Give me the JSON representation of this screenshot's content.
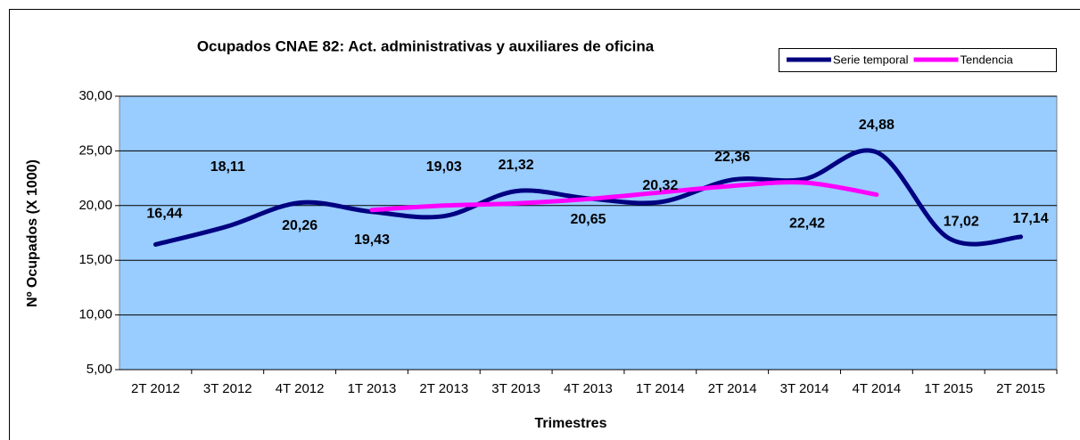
{
  "chart_data": {
    "type": "line",
    "title": "Ocupados CNAE 82: Act. administrativas y auxiliares de oficina",
    "x_label": "Trimestres",
    "y_label": "Nº Ocupados (X 1000)",
    "categories": [
      "2T 2012",
      "3T 2012",
      "4T 2012",
      "1T 2013",
      "2T 2013",
      "3T 2013",
      "4T 2013",
      "1T 2014",
      "2T 2014",
      "3T 2014",
      "4T 2014",
      "1T 2015",
      "2T 2015"
    ],
    "series": [
      {
        "name": "Serie temporal",
        "color": "#000080",
        "values": [
          16.44,
          18.11,
          20.26,
          19.43,
          19.03,
          21.32,
          20.65,
          20.32,
          22.36,
          22.42,
          24.88,
          17.02,
          17.14
        ],
        "value_labels": [
          "16,44",
          "18,11",
          "20,26",
          "19,43",
          "19,03",
          "21,32",
          "20,65",
          "20,32",
          "22,36",
          "22,42",
          "24,88",
          "17,02",
          "17,14"
        ]
      },
      {
        "name": "Tendencia",
        "color": "#ff00ff",
        "values": [
          null,
          null,
          null,
          19.6,
          20.0,
          20.2,
          20.6,
          21.2,
          21.8,
          22.1,
          21.0,
          null,
          null
        ]
      }
    ],
    "ylim": [
      5,
      30
    ],
    "yticks": [
      {
        "value": 5,
        "label": "5,00"
      },
      {
        "value": 10,
        "label": "10,00"
      },
      {
        "value": 15,
        "label": "15,00"
      },
      {
        "value": 20,
        "label": "20,00"
      },
      {
        "value": 25,
        "label": "25,00"
      },
      {
        "value": 30,
        "label": "30,00"
      }
    ],
    "grid": true,
    "legend": "top-right",
    "plot_background": "#99ccff"
  }
}
